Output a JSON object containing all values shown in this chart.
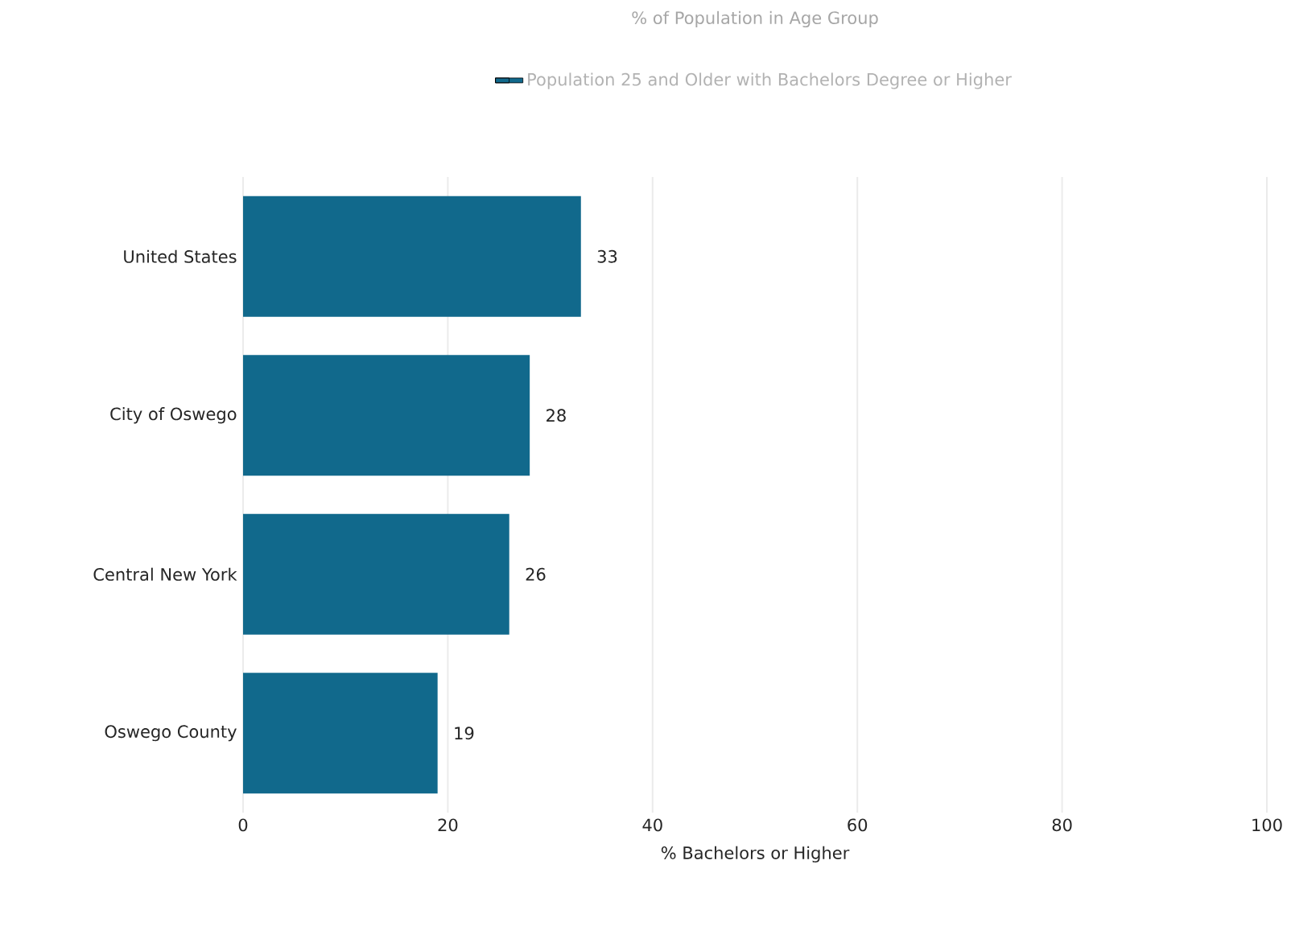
{
  "chart_data": {
    "type": "bar",
    "orientation": "horizontal",
    "title": "% of Population in Age Group",
    "xlabel": "% Bachelors or Higher",
    "categories": [
      "United States",
      "City of Oswego",
      "Central New York",
      "Oswego County"
    ],
    "series": [
      {
        "name": "Population 25 and Older with Bachelors Degree or Higher",
        "color": "#11698c",
        "values": [
          33,
          28,
          26,
          19
        ]
      }
    ],
    "xlim": [
      0,
      100
    ],
    "xticks": [
      0,
      20,
      40,
      60,
      80,
      100
    ],
    "grid": "x",
    "legend": "top",
    "data_labels": true
  }
}
